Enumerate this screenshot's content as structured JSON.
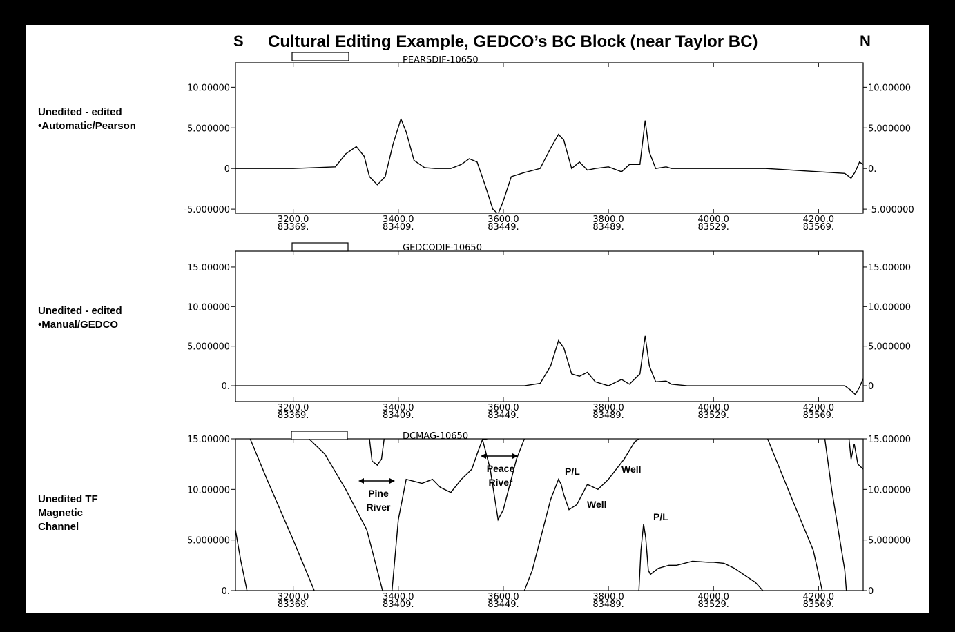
{
  "title": "Cultural Editing Example, GEDCO’s BC Block (near Taylor BC)",
  "dir_left": "S",
  "dir_right": "N",
  "side_labels": [
    [
      "Unedited - edited",
      "•Automatic/Pearson"
    ],
    [
      "Unedited - edited",
      "•Manual/GEDCO"
    ],
    [
      "Unedited TF",
      "Magnetic",
      "Channel"
    ]
  ],
  "annotations": {
    "pine": [
      "Pine",
      "River"
    ],
    "peace": [
      "Peace",
      "River"
    ],
    "pl1": "P/L",
    "pl2": "P/L",
    "well1": "Well",
    "well2": "Well"
  },
  "chart_data": [
    {
      "type": "line",
      "title": "PEARSDIF-10650",
      "x_ticks": [
        "3200.0",
        "3400.0",
        "3600.0",
        "3800.0",
        "4000.0",
        "4200.0"
      ],
      "x_ticks_secondary": [
        "83369.",
        "83409.",
        "83449.",
        "83489.",
        "83529.",
        "83569."
      ],
      "xlim": [
        3090,
        4285
      ],
      "ylim": [
        -5.5,
        13
      ],
      "y_ticks_left": [
        "10.00000",
        "5.000000",
        "0",
        "-5.000000"
      ],
      "y_ticks_left_values": [
        10,
        5,
        0,
        -5
      ],
      "y_ticks_right": [
        "10.00000",
        "5.000000",
        "0.",
        "-5.000000"
      ],
      "y_ticks_right_values": [
        10,
        5,
        0,
        -5
      ],
      "series": [
        {
          "x": [
            3090,
            3200,
            3280,
            3300,
            3320,
            3335,
            3345,
            3360,
            3375,
            3390,
            3405,
            3415,
            3430,
            3450,
            3470,
            3500,
            3520,
            3535,
            3550,
            3565,
            3580,
            3590,
            3600,
            3615,
            3640,
            3670,
            3690,
            3705,
            3715,
            3730,
            3745,
            3760,
            3775,
            3800,
            3825,
            3840,
            3860,
            3870,
            3878,
            3890,
            3910,
            3920,
            3950,
            4000,
            4100,
            4250,
            4262,
            4270,
            4278,
            4285
          ],
          "y": [
            0,
            0,
            0.2,
            1.8,
            2.7,
            1.5,
            -1,
            -2,
            -1,
            3,
            6.1,
            4.5,
            1,
            0.1,
            0,
            0,
            0.5,
            1.2,
            0.8,
            -2,
            -5,
            -5.6,
            -4,
            -1,
            -0.5,
            0,
            2.5,
            4.2,
            3.5,
            0,
            0.8,
            -0.2,
            0,
            0.2,
            -0.4,
            0.5,
            0.5,
            5.9,
            2,
            0,
            0.2,
            0,
            0,
            0,
            0,
            -0.6,
            -1.2,
            -0.4,
            0.8,
            0.5
          ]
        }
      ]
    },
    {
      "type": "line",
      "title": "GEDCODIF-10650",
      "x_ticks": [
        "3200.0",
        "3400.0",
        "3600.0",
        "3800.0",
        "4000.0",
        "4200.0"
      ],
      "x_ticks_secondary": [
        "83369.",
        "83409.",
        "83449.",
        "83489.",
        "83529.",
        "83569."
      ],
      "xlim": [
        3090,
        4285
      ],
      "ylim": [
        -2,
        17
      ],
      "y_ticks_left": [
        "15.00000",
        "10.00000",
        "5.000000",
        "0."
      ],
      "y_ticks_left_values": [
        15,
        10,
        5,
        0
      ],
      "y_ticks_right": [
        "15.00000",
        "10.00000",
        "5.000000",
        "0"
      ],
      "y_ticks_right_values": [
        15,
        10,
        5,
        0
      ],
      "series": [
        {
          "x": [
            3090,
            3640,
            3670,
            3690,
            3705,
            3715,
            3730,
            3745,
            3760,
            3775,
            3800,
            3825,
            3840,
            3860,
            3870,
            3878,
            3890,
            3910,
            3920,
            3950,
            4000,
            4100,
            4250,
            4262,
            4270,
            4278,
            4285
          ],
          "y": [
            0,
            0,
            0.3,
            2.5,
            5.7,
            4.8,
            1.5,
            1.2,
            1.7,
            0.5,
            0,
            0.8,
            0.2,
            1.5,
            6.3,
            2.5,
            0.5,
            0.6,
            0.2,
            0,
            0,
            0,
            0,
            -0.6,
            -1.1,
            -0.2,
            0.9
          ]
        }
      ]
    },
    {
      "type": "line",
      "title": "DCMAG-10650",
      "x_ticks": [
        "3200.0",
        "3400.0",
        "3600.0",
        "3800.0",
        "4000.0",
        "4200.0"
      ],
      "x_ticks_secondary": [
        "83369.",
        "83409.",
        "83449.",
        "83489.",
        "83529.",
        "83569."
      ],
      "xlim": [
        3090,
        4285
      ],
      "ylim": [
        0,
        15
      ],
      "y_ticks_left": [
        "15.00000",
        "10.00000",
        "5.000000",
        "0."
      ],
      "y_ticks_left_values": [
        15,
        10,
        5,
        0
      ],
      "y_ticks_right": [
        "15.00000",
        "10.00000",
        "5.000000",
        "0"
      ],
      "y_ticks_right_values": [
        15,
        10,
        5,
        0
      ],
      "series": [
        {
          "x": [
            3090,
            3100,
            3112
          ],
          "y": [
            6,
            3,
            0
          ]
        },
        {
          "x": [
            3118,
            3150,
            3200,
            3240
          ],
          "y": [
            15,
            11,
            5,
            0
          ]
        },
        {
          "x": [
            3230,
            3260,
            3300,
            3340,
            3360,
            3370
          ],
          "y": [
            15,
            13.5,
            10,
            6,
            2,
            0
          ]
        },
        {
          "x": [
            3345,
            3350,
            3360,
            3368,
            3373
          ],
          "y": [
            15,
            12.8,
            12.4,
            13,
            15
          ]
        },
        {
          "x": [
            3388,
            3400,
            3415,
            3430,
            3445,
            3465,
            3480,
            3500,
            3520,
            3540,
            3550,
            3560,
            3570
          ],
          "y": [
            0,
            7,
            11,
            10.8,
            10.6,
            11,
            10.2,
            9.7,
            11,
            12,
            13.5,
            14.9,
            15
          ]
        },
        {
          "x": [
            3560,
            3575,
            3590,
            3600,
            3610,
            3625,
            3640
          ],
          "y": [
            15,
            12,
            7,
            8,
            10,
            13,
            15
          ]
        },
        {
          "x": [
            3640,
            3655,
            3670,
            3690,
            3705,
            3710,
            3715,
            3725,
            3740,
            3760,
            3780,
            3800,
            3830,
            3850,
            3858
          ],
          "y": [
            0,
            2,
            5,
            9,
            11,
            10.5,
            9.5,
            8,
            8.5,
            10.5,
            10,
            11,
            13,
            14.7,
            15
          ]
        },
        {
          "x": [
            3858,
            3862,
            3867,
            3871,
            3876,
            3880,
            3885,
            3895,
            3915,
            3930,
            3960,
            3990,
            4000,
            4020,
            4040,
            4060,
            4080,
            4094
          ],
          "y": [
            0,
            4,
            6.6,
            5.2,
            2,
            1.6,
            1.8,
            2.2,
            2.5,
            2.5,
            2.9,
            2.8,
            2.8,
            2.7,
            2.2,
            1.5,
            0.8,
            0
          ]
        },
        {
          "x": [
            4103,
            4150,
            4190,
            4207
          ],
          "y": [
            15,
            9,
            4,
            0
          ]
        },
        {
          "x": [
            4212,
            4225,
            4250,
            4253
          ],
          "y": [
            15,
            10,
            2,
            0
          ]
        },
        {
          "x": [
            4258,
            4262,
            4268,
            4275,
            4285
          ],
          "y": [
            15,
            13,
            14.5,
            12.5,
            12
          ]
        }
      ]
    }
  ]
}
